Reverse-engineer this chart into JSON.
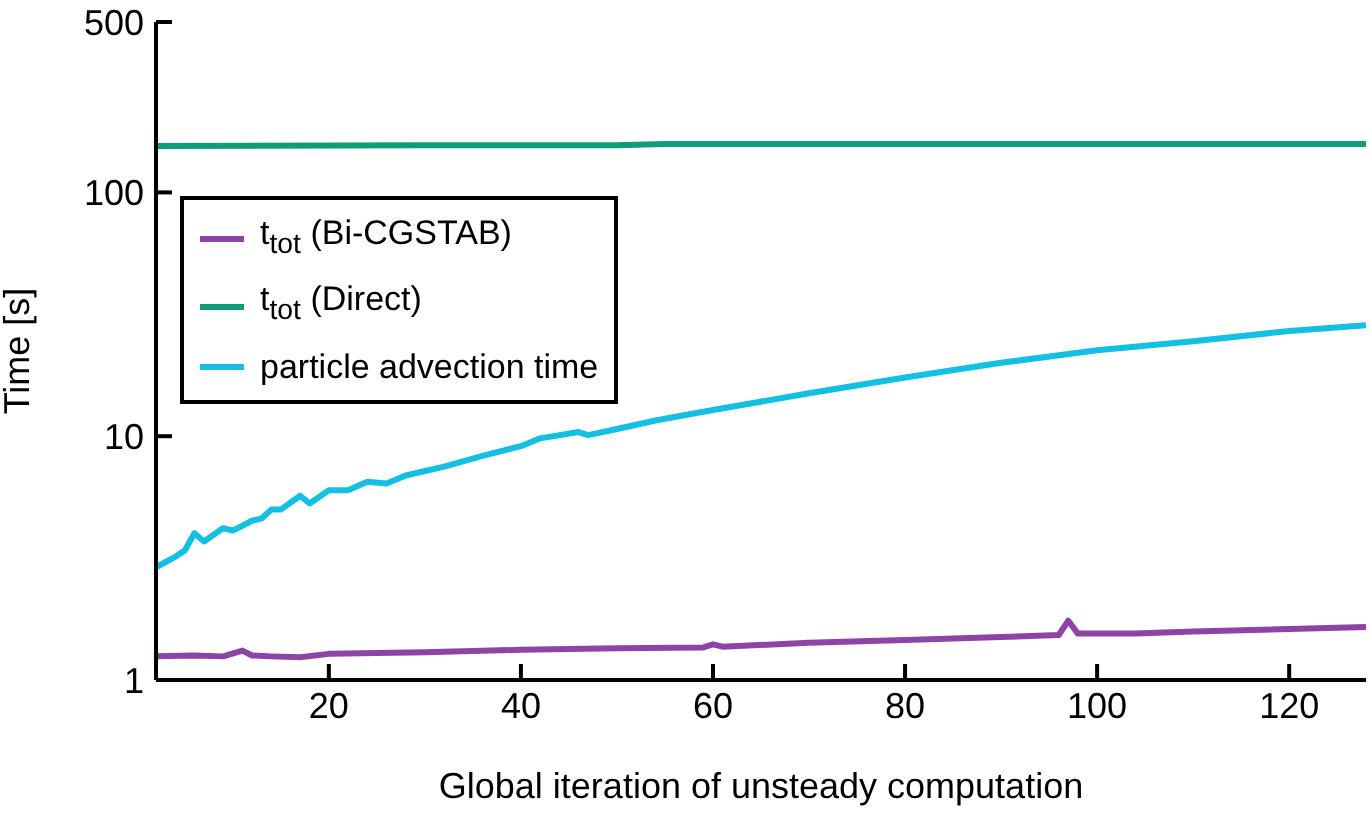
{
  "chart_data": {
    "type": "line",
    "xlabel": "Global iteration of unsteady computation",
    "ylabel": "Time [s]",
    "xlim": [
      2,
      128
    ],
    "xticks": [
      20,
      40,
      60,
      80,
      100,
      120
    ],
    "ylim": [
      1,
      500
    ],
    "yticks": [
      1,
      10,
      100,
      500
    ],
    "log": "y",
    "grid": false,
    "legend": "top left",
    "marker": "none",
    "line_style": "solid",
    "series": [
      {
        "name": "t$_{tot}$ (Bi-CGSTAB)",
        "color": "#8e44a4",
        "x": [
          2,
          6,
          9,
          11,
          12,
          14,
          17,
          20,
          25,
          30,
          40,
          50,
          59,
          60,
          61,
          70,
          80,
          90,
          96,
          97,
          98,
          104,
          110,
          120,
          128
        ],
        "values": [
          1.25,
          1.26,
          1.25,
          1.32,
          1.26,
          1.25,
          1.24,
          1.28,
          1.29,
          1.3,
          1.33,
          1.35,
          1.36,
          1.4,
          1.37,
          1.42,
          1.46,
          1.5,
          1.53,
          1.75,
          1.55,
          1.55,
          1.58,
          1.62,
          1.65
        ]
      },
      {
        "name": "t$_{tot}$ (Direct)",
        "color": "#0f9d78",
        "x": [
          2,
          30,
          50,
          55,
          80,
          100,
          128
        ],
        "values": [
          155,
          156,
          156,
          158,
          158,
          158,
          158
        ]
      },
      {
        "name": "particle advection time",
        "color": "#13bfe3",
        "x": [
          2,
          4,
          5,
          6,
          7,
          9,
          10,
          12,
          13,
          14,
          15,
          17,
          18,
          20,
          22,
          24,
          26,
          28,
          32,
          36,
          40,
          42,
          46,
          47,
          50,
          54,
          60,
          70,
          80,
          90,
          100,
          110,
          120,
          128
        ],
        "values": [
          2.9,
          3.2,
          3.4,
          4.0,
          3.7,
          4.2,
          4.1,
          4.5,
          4.6,
          5.0,
          5.0,
          5.7,
          5.3,
          6.0,
          6.0,
          6.5,
          6.4,
          6.9,
          7.5,
          8.3,
          9.1,
          9.8,
          10.4,
          10.1,
          10.7,
          11.6,
          12.8,
          15,
          17.4,
          20,
          22.5,
          24.5,
          27,
          28.5
        ]
      }
    ]
  }
}
